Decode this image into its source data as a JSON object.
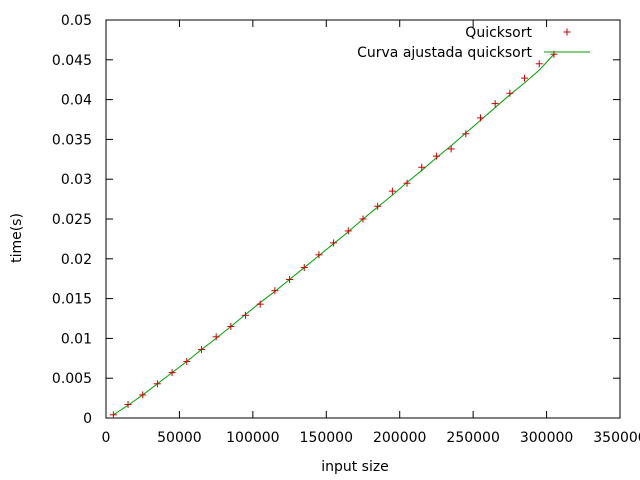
{
  "chart_data": {
    "type": "scatter",
    "title": "",
    "xlabel": "input size",
    "ylabel": "time(s)",
    "xlim": [
      0,
      350000
    ],
    "ylim": [
      0,
      0.05
    ],
    "grid": false,
    "legend_position": "top-right",
    "x_ticks": [
      "0",
      "50000",
      "100000",
      "150000",
      "200000",
      "250000",
      "300000",
      "350000"
    ],
    "y_ticks": [
      "0",
      "0.005",
      "0.01",
      "0.015",
      "0.02",
      "0.025",
      "0.03",
      "0.035",
      "0.04",
      "0.045",
      "0.05"
    ],
    "series": [
      {
        "name": "Quicksort",
        "kind": "points",
        "color": "#cc0000",
        "x": [
          5000,
          15000,
          25000,
          35000,
          45000,
          55000,
          65000,
          75000,
          85000,
          95000,
          105000,
          115000,
          125000,
          135000,
          145000,
          155000,
          165000,
          175000,
          185000,
          195000,
          205000,
          215000,
          225000,
          235000,
          245000,
          255000,
          265000,
          275000,
          285000,
          295000,
          305000
        ],
        "y": [
          0.0004,
          0.0017,
          0.0029,
          0.0043,
          0.0057,
          0.0071,
          0.0086,
          0.0102,
          0.0115,
          0.0129,
          0.0143,
          0.016,
          0.0174,
          0.0189,
          0.0205,
          0.022,
          0.0235,
          0.025,
          0.0266,
          0.0285,
          0.0295,
          0.0315,
          0.0329,
          0.0338,
          0.0357,
          0.0377,
          0.0395,
          0.0408,
          0.0427,
          0.0445,
          0.0457
        ]
      },
      {
        "name": "Curva ajustada quicksort",
        "kind": "line",
        "color": "#00a000",
        "x": [
          5000,
          15000,
          25000,
          35000,
          45000,
          55000,
          65000,
          75000,
          85000,
          95000,
          105000,
          115000,
          125000,
          135000,
          145000,
          155000,
          165000,
          175000,
          185000,
          195000,
          205000,
          215000,
          225000,
          235000,
          245000,
          255000,
          265000,
          275000,
          285000,
          295000,
          305000
        ],
        "y": [
          0.0004,
          0.0016,
          0.0029,
          0.0043,
          0.0057,
          0.0071,
          0.0086,
          0.01,
          0.0115,
          0.013,
          0.0145,
          0.0159,
          0.0174,
          0.0189,
          0.0204,
          0.0219,
          0.0234,
          0.025,
          0.0265,
          0.028,
          0.0296,
          0.0311,
          0.0327,
          0.0342,
          0.0358,
          0.0374,
          0.039,
          0.0406,
          0.0421,
          0.0437,
          0.0457
        ]
      }
    ]
  }
}
